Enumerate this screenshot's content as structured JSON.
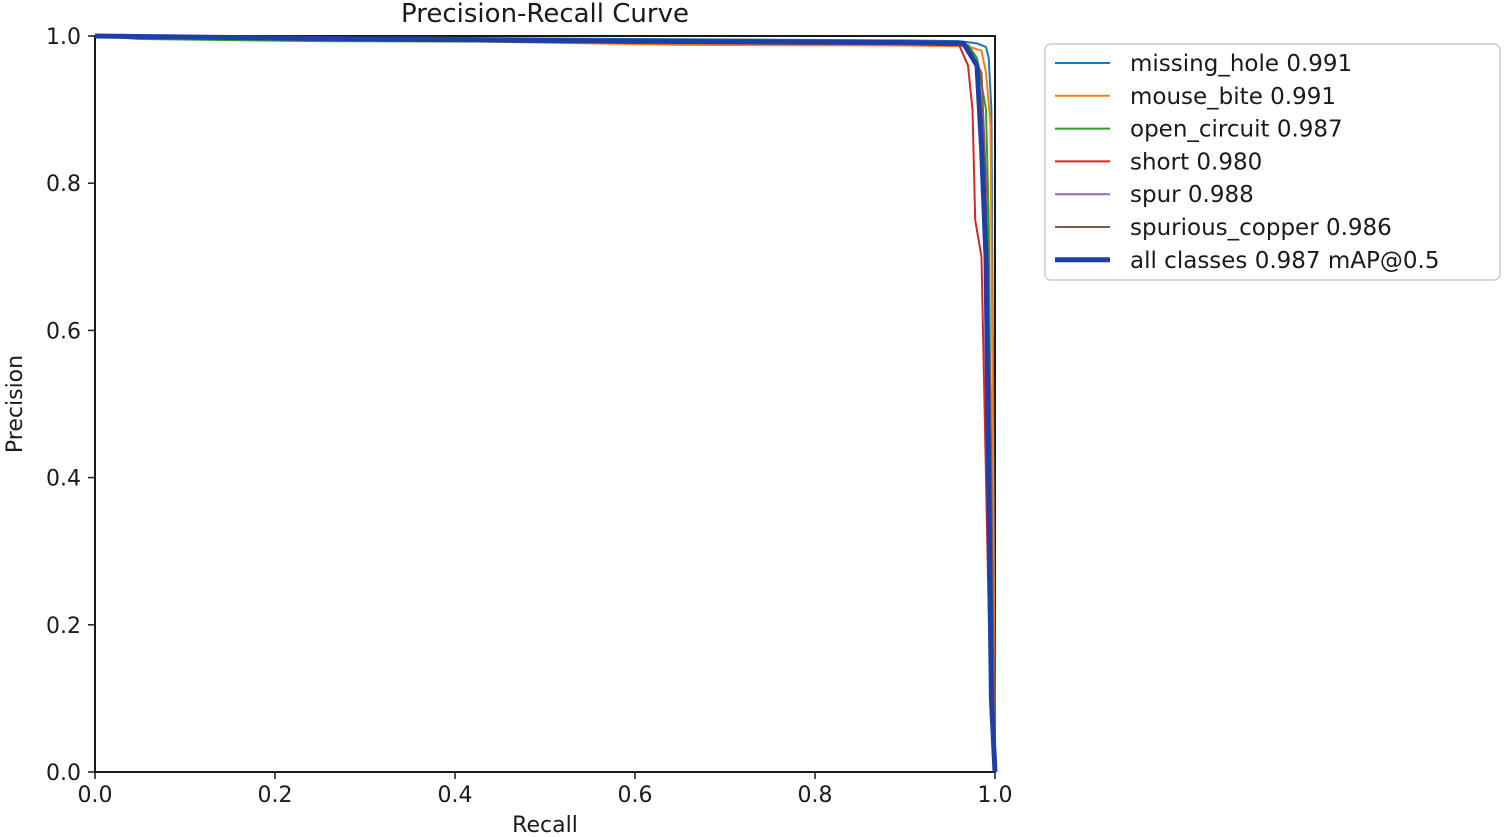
{
  "chart_data": {
    "type": "line",
    "title": "Precision-Recall Curve",
    "xlabel": "Recall",
    "ylabel": "Precision",
    "xlim": [
      0,
      1
    ],
    "ylim": [
      0,
      1
    ],
    "xticks": [
      "0.0",
      "0.2",
      "0.4",
      "0.6",
      "0.8",
      "1.0"
    ],
    "yticks": [
      "0.0",
      "0.2",
      "0.4",
      "0.6",
      "0.8",
      "1.0"
    ],
    "grid": false,
    "legend_position": "outside-right-top",
    "series": [
      {
        "name": "missing_hole 0.991",
        "color": "#1f77b4",
        "points": [
          [
            0,
            1.0
          ],
          [
            0.3,
            0.998
          ],
          [
            0.6,
            0.996
          ],
          [
            0.9,
            0.994
          ],
          [
            0.96,
            0.993
          ],
          [
            0.98,
            0.99
          ],
          [
            0.99,
            0.985
          ],
          [
            0.993,
            0.97
          ],
          [
            0.996,
            0.9
          ],
          [
            0.998,
            0.5
          ],
          [
            1.0,
            0.0
          ]
        ]
      },
      {
        "name": "mouse_bite 0.991",
        "color": "#ff7f0e",
        "points": [
          [
            0,
            1.0
          ],
          [
            0.3,
            0.995
          ],
          [
            0.65,
            0.988
          ],
          [
            0.9,
            0.987
          ],
          [
            0.97,
            0.986
          ],
          [
            0.985,
            0.98
          ],
          [
            0.99,
            0.95
          ],
          [
            0.995,
            0.88
          ],
          [
            0.998,
            0.4
          ],
          [
            1.0,
            0.0
          ]
        ]
      },
      {
        "name": "open_circuit 0.987",
        "color": "#2ca02c",
        "points": [
          [
            0,
            1.0
          ],
          [
            0.05,
            0.996
          ],
          [
            0.25,
            0.993
          ],
          [
            0.6,
            0.992
          ],
          [
            0.9,
            0.99
          ],
          [
            0.97,
            0.988
          ],
          [
            0.98,
            0.97
          ],
          [
            0.99,
            0.9
          ],
          [
            0.993,
            0.75
          ],
          [
            0.997,
            0.2
          ],
          [
            1.0,
            0.0
          ]
        ]
      },
      {
        "name": "short 0.980",
        "color": "#d62728",
        "points": [
          [
            0,
            1.0
          ],
          [
            0.3,
            0.995
          ],
          [
            0.6,
            0.993
          ],
          [
            0.9,
            0.99
          ],
          [
            0.96,
            0.988
          ],
          [
            0.97,
            0.96
          ],
          [
            0.975,
            0.9
          ],
          [
            0.978,
            0.75
          ],
          [
            0.985,
            0.7
          ],
          [
            0.99,
            0.4
          ],
          [
            0.995,
            0.1
          ],
          [
            1.0,
            0.0
          ]
        ]
      },
      {
        "name": "spur 0.988",
        "color": "#9467bd",
        "points": [
          [
            0,
            1.0
          ],
          [
            0.3,
            0.995
          ],
          [
            0.6,
            0.992
          ],
          [
            0.9,
            0.99
          ],
          [
            0.965,
            0.989
          ],
          [
            0.98,
            0.96
          ],
          [
            0.985,
            0.85
          ],
          [
            0.99,
            0.7
          ],
          [
            0.995,
            0.3
          ],
          [
            1.0,
            0.0
          ]
        ]
      },
      {
        "name": "spurious_copper 0.986",
        "color": "#8c564b",
        "points": [
          [
            0,
            1.0
          ],
          [
            0.3,
            0.994
          ],
          [
            0.65,
            0.99
          ],
          [
            0.9,
            0.989
          ],
          [
            0.97,
            0.987
          ],
          [
            0.985,
            0.95
          ],
          [
            0.99,
            0.8
          ],
          [
            0.995,
            0.5
          ],
          [
            1.0,
            0.0
          ]
        ]
      },
      {
        "name": "all classes 0.987 mAP@0.5",
        "color": "#1f3fa6",
        "thick": true,
        "points": [
          [
            0,
            1.0
          ],
          [
            0.3,
            0.996
          ],
          [
            0.6,
            0.993
          ],
          [
            0.9,
            0.991
          ],
          [
            0.965,
            0.99
          ],
          [
            0.98,
            0.96
          ],
          [
            0.985,
            0.85
          ],
          [
            0.99,
            0.7
          ],
          [
            0.993,
            0.4
          ],
          [
            0.996,
            0.1
          ],
          [
            1.0,
            0.0
          ]
        ]
      }
    ]
  }
}
